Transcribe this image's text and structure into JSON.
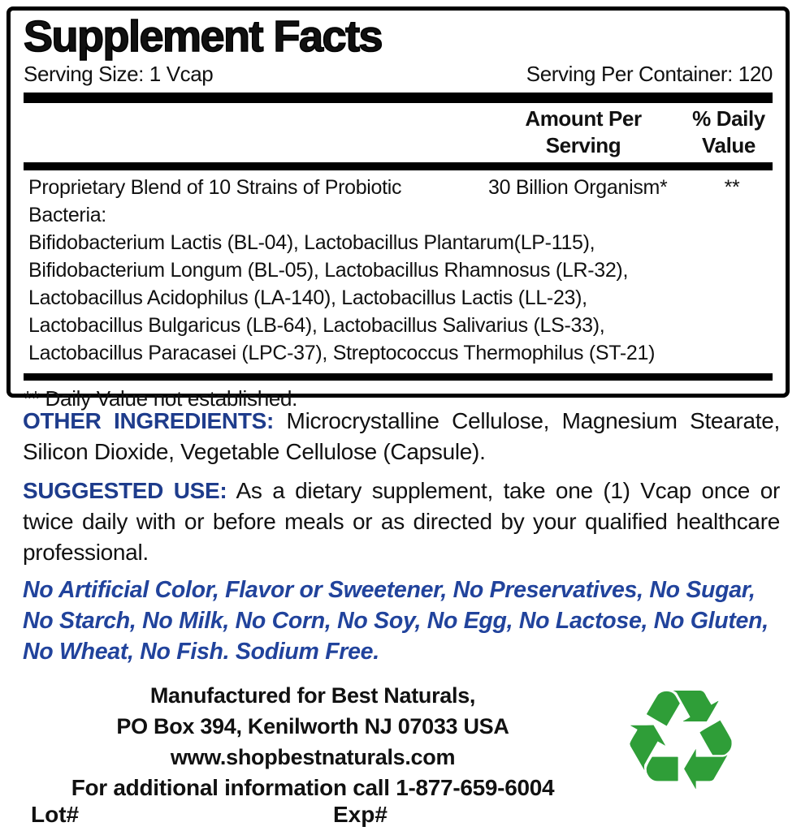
{
  "colors": {
    "heading_blue": "#1e3c8c",
    "claims_blue": "#21439c",
    "text_black": "#111111",
    "recycle_green": "#2f9e38"
  },
  "icons": {
    "recycle_glyph": "♻"
  },
  "supplement_facts": {
    "title": "Supplement Facts",
    "serving_size": "Serving Size: 1 Vcap",
    "servings_per_container": "Serving Per Container: 120",
    "headers": {
      "amount_line1": "Amount Per",
      "amount_line2": "Serving",
      "dv_line1": "% Daily",
      "dv_line2": "Value"
    },
    "blend": {
      "name_line1": "Proprietary Blend of 10 Strains of Probiotic",
      "name_line2": "Bacteria:",
      "amount": "30 Billion Organism*",
      "daily_value": "**",
      "strains": [
        "Bifidobacterium Lactis (BL-04), Lactobacillus Plantarum(LP-115),",
        "Bifidobacterium Longum (BL-05), Lactobacillus Rhamnosus (LR-32),",
        "Lactobacillus Acidophilus (LA-140), Lactobacillus Lactis (LL-23),",
        "Lactobacillus Bulgaricus (LB-64), Lactobacillus Salivarius (LS-33),",
        "Lactobacillus Paracasei (LPC-37), Streptococcus Thermophilus (ST-21)"
      ]
    },
    "footnote": "** Daily Value not established."
  },
  "other_ingredients": {
    "label": "OTHER INGREDIENTS:",
    "text": "Microcrystalline Cellulose, Magnesium Stearate, Silicon Dioxide, Vegetable Cellulose (Capsule)."
  },
  "suggested_use": {
    "label": "SUGGESTED USE:",
    "text": "As a dietary supplement, take one (1) Vcap once or twice daily with or before meals or as directed by your qualified healthcare professional."
  },
  "claims": {
    "lines": [
      "No Artificial Color, Flavor or Sweetener, No Preservatives, No Sugar,",
      "No Starch, No Milk, No Corn, No Soy, No Egg, No Lactose, No Gluten,",
      "No Wheat, No Fish. Sodium Free."
    ]
  },
  "footer": {
    "manufactured_line": "Manufactured for Best Naturals,",
    "address_line": "PO Box 394, Kenilworth NJ 07033 USA",
    "website": "www.shopbestnaturals.com",
    "phone_line": "For additional information call 1-877-659-6004",
    "lot_label": "Lot#",
    "exp_label": "Exp#"
  }
}
